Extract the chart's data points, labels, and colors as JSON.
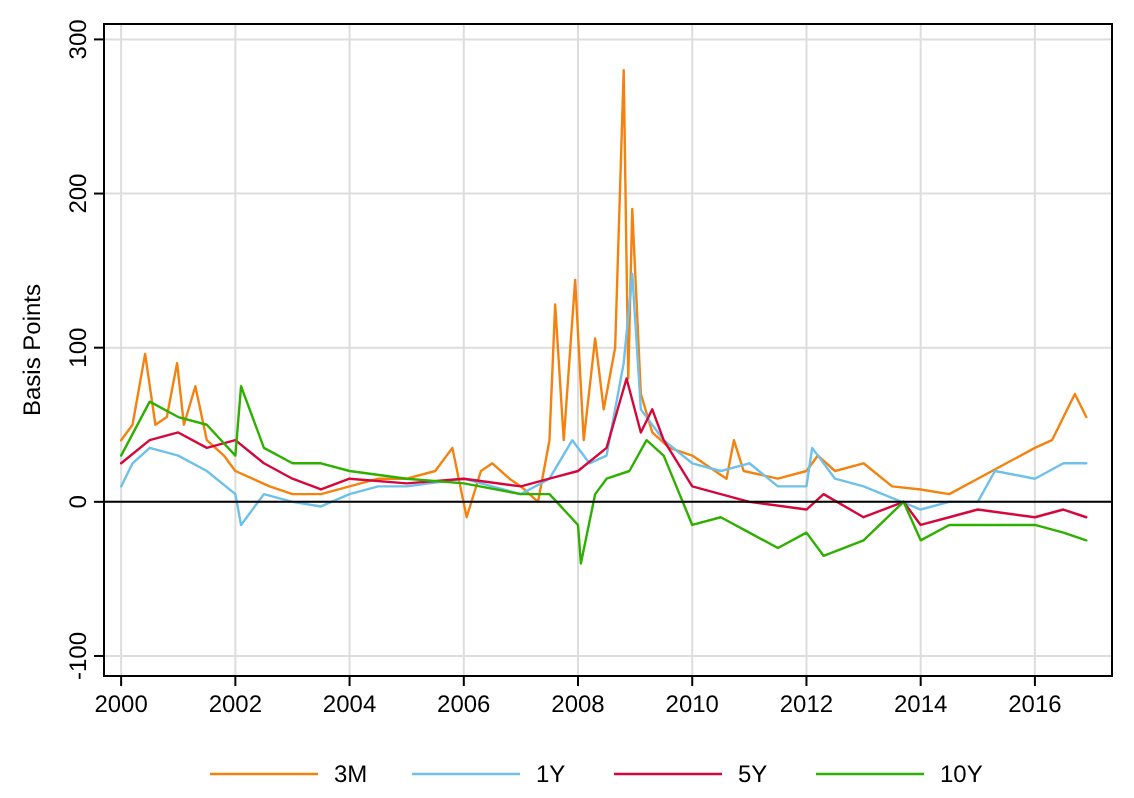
{
  "chart_data": {
    "type": "line",
    "ylabel": "Basis Points",
    "xlim": [
      1999.7,
      2017.35
    ],
    "ylim": [
      -113,
      310
    ],
    "xticks": [
      2000,
      2002,
      2004,
      2006,
      2008,
      2010,
      2012,
      2014,
      2016
    ],
    "yticks": [
      -100,
      0,
      100,
      200,
      300
    ],
    "grid": true,
    "legend": "bottom",
    "ref_lines": [
      {
        "axis": "y",
        "value": 0,
        "color": "#000000"
      }
    ],
    "series": [
      {
        "name": "3M",
        "color": "#f5820f",
        "x": [
          2000,
          2000.2,
          2000.42,
          2000.6,
          2000.8,
          2000.98,
          2001.1,
          2001.3,
          2001.5,
          2001.8,
          2002,
          2002.3,
          2002.6,
          2003,
          2003.5,
          2004,
          2004.5,
          2005,
          2005.5,
          2005.8,
          2006.05,
          2006.3,
          2006.5,
          2006.8,
          2007,
          2007.3,
          2007.5,
          2007.6,
          2007.75,
          2007.95,
          2008.1,
          2008.3,
          2008.45,
          2008.65,
          2008.8,
          2008.88,
          2008.95,
          2009.1,
          2009.3,
          2009.6,
          2010,
          2010.4,
          2010.6,
          2010.73,
          2010.9,
          2011.5,
          2012,
          2012.2,
          2012.5,
          2013,
          2013.5,
          2014,
          2014.5,
          2015,
          2015.5,
          2016,
          2016.3,
          2016.5,
          2016.7,
          2016.9
        ],
        "values": [
          40,
          50,
          96,
          50,
          55,
          90,
          50,
          75,
          40,
          30,
          20,
          15,
          10,
          5,
          5,
          10,
          15,
          15,
          20,
          35,
          -10,
          20,
          25,
          15,
          10,
          0,
          40,
          128,
          40,
          144,
          40,
          106,
          60,
          100,
          280,
          80,
          190,
          70,
          45,
          35,
          30,
          20,
          15,
          40,
          20,
          15,
          20,
          30,
          20,
          25,
          10,
          8,
          5,
          15,
          25,
          35,
          40,
          55,
          70,
          55
        ]
      },
      {
        "name": "1Y",
        "color": "#6ec1ea",
        "x": [
          2000,
          2000.2,
          2000.5,
          2001,
          2001.5,
          2002,
          2002.1,
          2002.5,
          2003,
          2003.5,
          2004,
          2004.5,
          2005,
          2006,
          2007,
          2007.5,
          2007.9,
          2008.2,
          2008.5,
          2008.8,
          2008.95,
          2009.1,
          2009.5,
          2010,
          2010.5,
          2011,
          2011.5,
          2012,
          2012.1,
          2012.5,
          2013,
          2014,
          2014.5,
          2015,
          2015.3,
          2016,
          2016.5,
          2016.9
        ],
        "values": [
          10,
          25,
          35,
          30,
          20,
          5,
          -15,
          5,
          0,
          -3,
          5,
          10,
          10,
          15,
          5,
          15,
          40,
          25,
          30,
          90,
          148,
          60,
          40,
          25,
          20,
          25,
          10,
          10,
          35,
          15,
          10,
          -5,
          0,
          0,
          20,
          15,
          25,
          25
        ]
      },
      {
        "name": "5Y",
        "color": "#d6073d",
        "x": [
          2000,
          2000.5,
          2001,
          2001.5,
          2002,
          2002.5,
          2003,
          2003.5,
          2004,
          2005,
          2006,
          2007,
          2007.5,
          2008,
          2008.5,
          2008.85,
          2009.1,
          2009.3,
          2009.5,
          2010,
          2010.5,
          2011,
          2012,
          2012.3,
          2013,
          2013.7,
          2014,
          2014.5,
          2015,
          2016,
          2016.5,
          2016.9
        ],
        "values": [
          25,
          40,
          45,
          35,
          40,
          25,
          15,
          8,
          15,
          12,
          15,
          10,
          15,
          20,
          35,
          80,
          45,
          60,
          40,
          10,
          5,
          0,
          -5,
          5,
          -10,
          0,
          -15,
          -10,
          -5,
          -10,
          -5,
          -10
        ]
      },
      {
        "name": "10Y",
        "color": "#2eb000",
        "x": [
          2000,
          2000.5,
          2001,
          2001.5,
          2002,
          2002.1,
          2002.5,
          2003,
          2003.5,
          2004,
          2005,
          2006,
          2007,
          2007.5,
          2008,
          2008.05,
          2008.3,
          2008.5,
          2008.9,
          2009.2,
          2009.5,
          2010,
          2010.5,
          2011,
          2011.5,
          2012,
          2012.3,
          2013,
          2013.7,
          2014,
          2014.5,
          2015,
          2016,
          2016.5,
          2016.9
        ],
        "values": [
          30,
          65,
          55,
          50,
          30,
          75,
          35,
          25,
          25,
          20,
          15,
          12,
          5,
          5,
          -15,
          -40,
          5,
          15,
          20,
          40,
          30,
          -15,
          -10,
          -20,
          -30,
          -20,
          -35,
          -25,
          0,
          -25,
          -15,
          -15,
          -15,
          -20,
          -25
        ]
      }
    ]
  }
}
